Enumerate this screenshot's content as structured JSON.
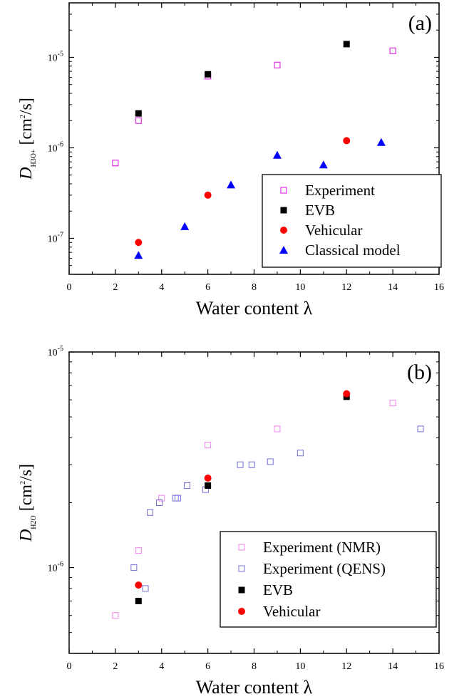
{
  "chart_data": [
    {
      "type": "scatter",
      "panel_label": "(a)",
      "xlabel": "Water content λ",
      "ylabel": {
        "italic": "D",
        "sub": "H3O+",
        "unit": " [cm",
        "unit_sup": "2",
        "unit_end": "/s]"
      },
      "xlim": [
        0,
        16
      ],
      "ylim": [
        4e-08,
        4e-05
      ],
      "yscale": "log",
      "xticks": [
        "0",
        "2",
        "4",
        "6",
        "8",
        "10",
        "12",
        "14",
        "16"
      ],
      "yticks": [
        {
          "value": 1e-07,
          "base": "10",
          "exp": "-7"
        },
        {
          "value": 1e-06,
          "base": "10",
          "exp": "-6"
        },
        {
          "value": 1e-05,
          "base": "10",
          "exp": "-5"
        }
      ],
      "legend": {
        "position": "bottom-right"
      },
      "series": [
        {
          "name": "Experiment",
          "marker": "open-square",
          "color": "#e040e0",
          "points": [
            [
              2,
              6.8e-07
            ],
            [
              3,
              2e-06
            ],
            [
              6,
              6.2e-06
            ],
            [
              9,
              8.2e-06
            ],
            [
              14,
              1.18e-05
            ]
          ]
        },
        {
          "name": "EVB",
          "marker": "filled-square",
          "color": "#000000",
          "points": [
            [
              3,
              2.4e-06
            ],
            [
              6,
              6.5e-06
            ],
            [
              12,
              1.4e-05
            ]
          ]
        },
        {
          "name": "Vehicular",
          "marker": "filled-circle",
          "color": "#ff0000",
          "points": [
            [
              3,
              9e-08
            ],
            [
              6,
              3e-07
            ],
            [
              12,
              1.2e-06
            ]
          ]
        },
        {
          "name": "Classical model",
          "marker": "filled-triangle",
          "color": "#0000ff",
          "points": [
            [
              3,
              6.5e-08
            ],
            [
              5,
              1.35e-07
            ],
            [
              7,
              3.9e-07
            ],
            [
              9,
              8.3e-07
            ],
            [
              11,
              6.5e-07
            ],
            [
              13.5,
              1.15e-06
            ]
          ]
        }
      ]
    },
    {
      "type": "scatter",
      "panel_label": "(b)",
      "xlabel": "Water content λ",
      "ylabel": {
        "italic": "D",
        "sub": "H2O",
        "unit": " [cm",
        "unit_sup": "2",
        "unit_end": "/s]"
      },
      "xlim": [
        0,
        16
      ],
      "ylim": [
        4e-07,
        1e-05
      ],
      "yscale": "log",
      "xticks": [
        "0",
        "2",
        "4",
        "6",
        "8",
        "10",
        "12",
        "14",
        "16"
      ],
      "yticks": [
        {
          "value": 1e-06,
          "base": "10",
          "exp": "-6"
        },
        {
          "value": 1e-05,
          "base": "10",
          "exp": "-5"
        }
      ],
      "legend": {
        "position": "bottom-right"
      },
      "series": [
        {
          "name": "Experiment (NMR)",
          "marker": "open-square-small",
          "color": "#ee82ee",
          "points": [
            [
              2,
              6e-07
            ],
            [
              3,
              1.2e-06
            ],
            [
              4,
              2.1e-06
            ],
            [
              6,
              3.7e-06
            ],
            [
              9,
              4.4e-06
            ],
            [
              14,
              5.8e-06
            ]
          ]
        },
        {
          "name": "Experiment (QENS)",
          "marker": "open-square-small",
          "color": "#7070d8",
          "points": [
            [
              2.8,
              1e-06
            ],
            [
              3.3,
              8e-07
            ],
            [
              3.5,
              1.8e-06
            ],
            [
              3.9,
              2e-06
            ],
            [
              4.6,
              2.1e-06
            ],
            [
              4.7,
              2.1e-06
            ],
            [
              5.1,
              2.4e-06
            ],
            [
              5.9,
              2.3e-06
            ],
            [
              7.4,
              3e-06
            ],
            [
              7.9,
              3e-06
            ],
            [
              8.7,
              3.1e-06
            ],
            [
              10.0,
              3.4e-06
            ],
            [
              15.2,
              4.4e-06
            ]
          ]
        },
        {
          "name": "EVB",
          "marker": "filled-square",
          "color": "#000000",
          "points": [
            [
              3,
              7e-07
            ],
            [
              6,
              2.4e-06
            ],
            [
              12,
              6.2e-06
            ]
          ]
        },
        {
          "name": "Vehicular",
          "marker": "filled-circle",
          "color": "#ff0000",
          "points": [
            [
              3,
              8.3e-07
            ],
            [
              6,
              2.6e-06
            ],
            [
              12,
              6.4e-06
            ]
          ]
        }
      ]
    }
  ]
}
